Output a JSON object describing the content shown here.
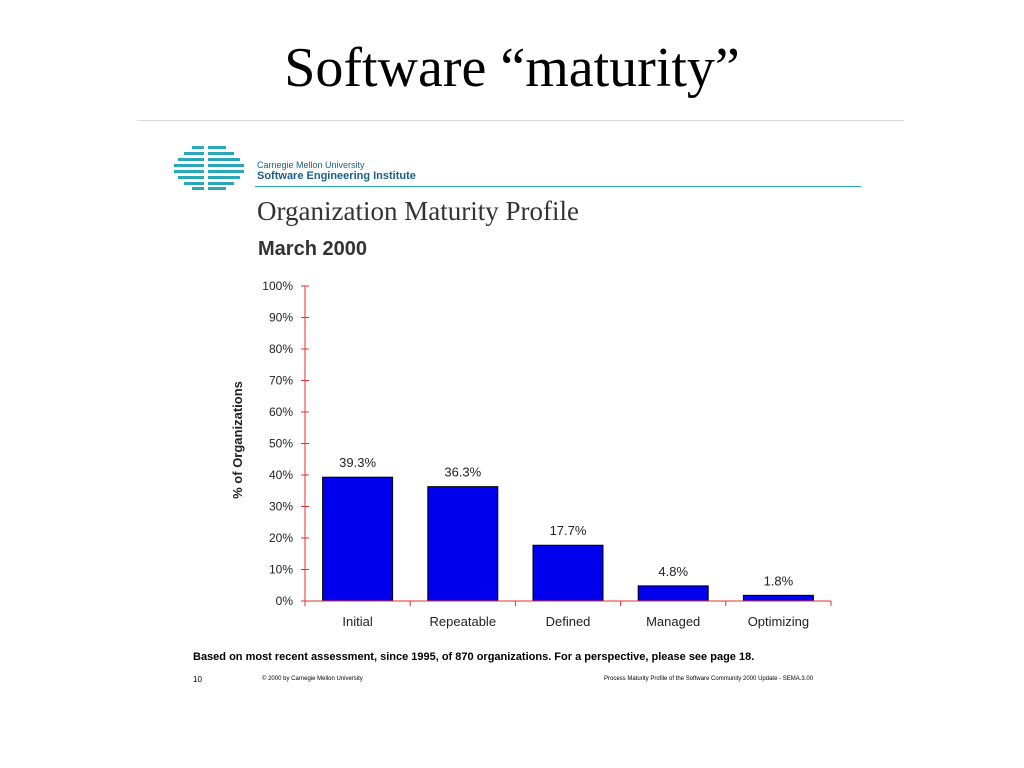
{
  "slide": {
    "title": "Software “maturity”"
  },
  "header": {
    "org_line1": "Carnegie Mellon University",
    "org_line2": "Software Engineering Institute"
  },
  "footer": {
    "note": "Based on most recent assessment, since 1995, of 870 organizations.  For a perspective, please see page 18.",
    "page_number": "10",
    "copyright": "© 2000 by Carnegie Mellon University",
    "source": "Process Maturity Profile of the Software Community 2000 Update - SEMA.3.00"
  },
  "chart_data": {
    "type": "bar",
    "title": "Organization Maturity Profile",
    "subtitle": "March 2000",
    "xlabel": "",
    "ylabel": "% of Organizations",
    "categories": [
      "Initial",
      "Repeatable",
      "Defined",
      "Managed",
      "Optimizing"
    ],
    "values": [
      39.3,
      36.3,
      17.7,
      4.8,
      1.8
    ],
    "data_labels": [
      "39.3%",
      "36.3%",
      "17.7%",
      "4.8%",
      "1.8%"
    ],
    "ylim": [
      0,
      100
    ],
    "yticks": [
      "0%",
      "10%",
      "20%",
      "30%",
      "40%",
      "50%",
      "60%",
      "70%",
      "80%",
      "90%",
      "100%"
    ],
    "grid": false,
    "colors": {
      "bar": "#0000ee",
      "bar_outline": "#000000",
      "axis": "#e03030"
    }
  }
}
